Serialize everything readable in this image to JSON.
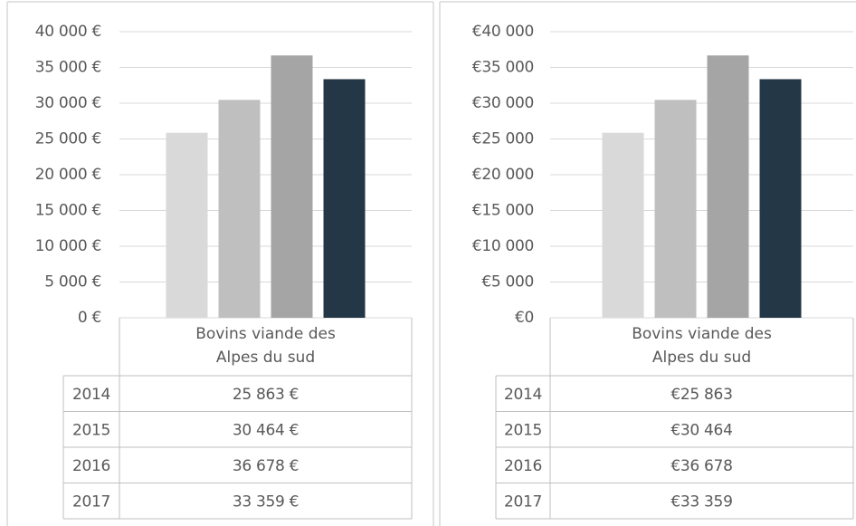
{
  "chart_data": [
    {
      "type": "bar",
      "categories": [
        "Bovins viande des Alpes du sud"
      ],
      "series": [
        {
          "name": "2014",
          "color": "#d9d9d9",
          "values": [
            25863
          ],
          "value_labels": [
            "25 863 €"
          ]
        },
        {
          "name": "2015",
          "color": "#bfbfbf",
          "values": [
            30464
          ],
          "value_labels": [
            "30 464 €"
          ]
        },
        {
          "name": "2016",
          "color": "#a5a5a5",
          "values": [
            36678
          ],
          "value_labels": [
            "36 678 €"
          ]
        },
        {
          "name": "2017",
          "color": "#243746",
          "values": [
            33359
          ],
          "value_labels": [
            "33 359 €"
          ]
        }
      ],
      "ylim": [
        0,
        40000
      ],
      "yticks": [
        {
          "value": 0,
          "label": "0 €"
        },
        {
          "value": 5000,
          "label": "5 000 €"
        },
        {
          "value": 10000,
          "label": "10 000 €"
        },
        {
          "value": 15000,
          "label": "15 000 €"
        },
        {
          "value": 20000,
          "label": "20 000 €"
        },
        {
          "value": 25000,
          "label": "25 000 €"
        },
        {
          "value": 30000,
          "label": "30 000 €"
        },
        {
          "value": 35000,
          "label": "35 000 €"
        },
        {
          "value": 40000,
          "label": "40 000 €"
        }
      ],
      "grid": true
    },
    {
      "type": "bar",
      "categories": [
        "Bovins viande des Alpes du sud"
      ],
      "series": [
        {
          "name": "2014",
          "color": "#d9d9d9",
          "values": [
            25863
          ],
          "value_labels": [
            "€25 863"
          ]
        },
        {
          "name": "2015",
          "color": "#bfbfbf",
          "values": [
            30464
          ],
          "value_labels": [
            "€30 464"
          ]
        },
        {
          "name": "2016",
          "color": "#a5a5a5",
          "values": [
            36678
          ],
          "value_labels": [
            "€36 678"
          ]
        },
        {
          "name": "2017",
          "color": "#243746",
          "values": [
            33359
          ],
          "value_labels": [
            "€33 359"
          ]
        }
      ],
      "ylim": [
        0,
        40000
      ],
      "yticks": [
        {
          "value": 0,
          "label": "€0"
        },
        {
          "value": 5000,
          "label": "€5 000"
        },
        {
          "value": 10000,
          "label": "€10 000"
        },
        {
          "value": 15000,
          "label": "€15 000"
        },
        {
          "value": 20000,
          "label": "€20 000"
        },
        {
          "value": 25000,
          "label": "€25 000"
        },
        {
          "value": 30000,
          "label": "€30 000"
        },
        {
          "value": 35000,
          "label": "€35 000"
        },
        {
          "value": 40000,
          "label": "€40 000"
        }
      ],
      "grid": true
    }
  ]
}
